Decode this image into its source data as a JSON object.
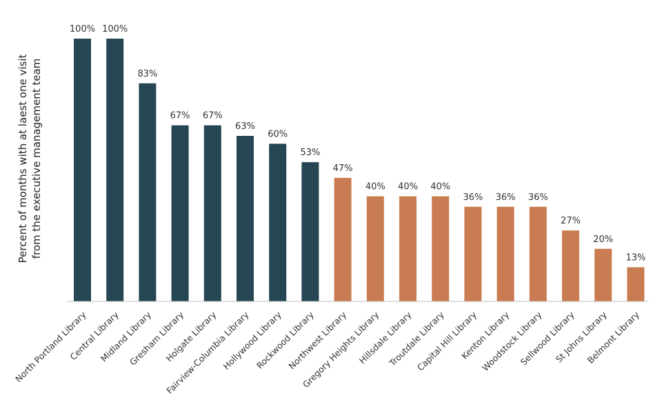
{
  "chart_data": {
    "type": "bar",
    "title": "",
    "xlabel": "",
    "ylabel_lines": [
      "Percent of months with at laest one visit",
      "from the executive management team"
    ],
    "ylim": [
      0,
      100
    ],
    "grid": false,
    "legend": "none",
    "categories": [
      "North Portland Library",
      "Central Library",
      "Midland Library",
      "Gresham Library",
      "Holgate Library",
      "Fairview-Columbia Library",
      "Hollywood Library",
      "Rockwood Library",
      "Northwest Library",
      "Gregory Heights Library",
      "Hillsdale Library",
      "Troutdale Library",
      "Capital Hill Library",
      "Kenton Library",
      "Woodstock Library",
      "Sellwood Library",
      "St Johns Library",
      "Belmont Library"
    ],
    "values": [
      100,
      100,
      83,
      67,
      67,
      63,
      60,
      53,
      47,
      40,
      40,
      40,
      36,
      36,
      36,
      27,
      20,
      13
    ],
    "data_labels": [
      "100%",
      "100%",
      "83%",
      "67%",
      "67%",
      "63%",
      "60%",
      "53%",
      "47%",
      "40%",
      "40%",
      "40%",
      "36%",
      "36%",
      "36%",
      "27%",
      "20%",
      "13%"
    ],
    "bar_color_groups": [
      "dark",
      "dark",
      "dark",
      "dark",
      "dark",
      "dark",
      "dark",
      "dark",
      "light",
      "light",
      "light",
      "light",
      "light",
      "light",
      "light",
      "light",
      "light",
      "light"
    ],
    "colors": {
      "dark": "#264653",
      "light": "#C97C52",
      "axis": "#BFBFBF"
    }
  }
}
